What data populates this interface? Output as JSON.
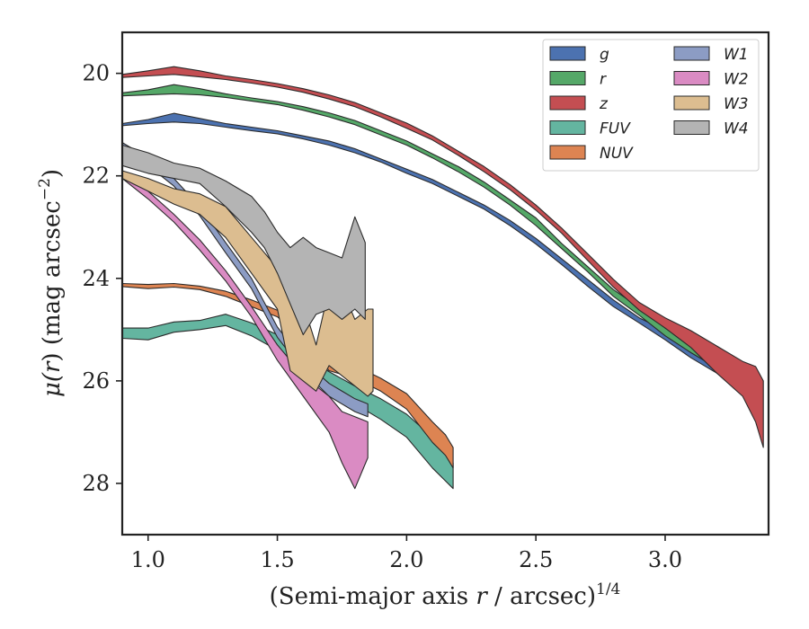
{
  "chart_data": {
    "type": "area",
    "title": "",
    "xlabel": "(Semi-major axis r / arcsec)1/4",
    "xlabel_parts": {
      "main": "(Semi-major axis ",
      "var": "r",
      "rest": " / arcsec)",
      "sup": "1/4"
    },
    "ylabel": "μ(r) (mag arcsec−2)",
    "ylabel_parts": {
      "mu": "μ(",
      "var": "r",
      "rest": ") (mag arcsec",
      "sup": "−2",
      "close": ")"
    },
    "xlim": [
      0.9,
      3.4
    ],
    "ylim": [
      29.0,
      19.2
    ],
    "y_inverted": true,
    "grid": false,
    "legend_placement": "top-right",
    "xticks": [
      1.0,
      1.5,
      2.0,
      2.5,
      3.0
    ],
    "xtick_labels": [
      "1.0",
      "1.5",
      "2.0",
      "2.5",
      "3.0"
    ],
    "yticks": [
      20,
      22,
      24,
      26,
      28
    ],
    "ytick_labels": [
      "20",
      "22",
      "24",
      "26",
      "28"
    ],
    "series": [
      {
        "name": "g",
        "color": "#4c72b0",
        "x": [
          0.9,
          1.0,
          1.1,
          1.2,
          1.3,
          1.4,
          1.5,
          1.6,
          1.7,
          1.8,
          1.9,
          2.0,
          2.1,
          2.2,
          2.3,
          2.4,
          2.5,
          2.6,
          2.7,
          2.8,
          2.9,
          3.0,
          3.1,
          3.2,
          3.3,
          3.35
        ],
        "y_bright": [
          20.98,
          20.9,
          20.78,
          20.88,
          20.98,
          21.05,
          21.12,
          21.22,
          21.32,
          21.47,
          21.67,
          21.87,
          22.07,
          22.32,
          22.57,
          22.87,
          23.22,
          23.62,
          24.02,
          24.42,
          24.77,
          25.02,
          25.32,
          25.62,
          25.92,
          26.12
        ],
        "y_faint": [
          21.02,
          20.98,
          20.95,
          20.98,
          21.05,
          21.12,
          21.18,
          21.28,
          21.4,
          21.55,
          21.73,
          21.95,
          22.15,
          22.4,
          22.65,
          22.97,
          23.33,
          23.73,
          24.15,
          24.55,
          24.87,
          25.2,
          25.55,
          25.85,
          26.25,
          26.5
        ]
      },
      {
        "name": "r",
        "color": "#55a868",
        "x": [
          0.9,
          1.0,
          1.1,
          1.2,
          1.3,
          1.4,
          1.5,
          1.6,
          1.7,
          1.8,
          1.9,
          2.0,
          2.1,
          2.2,
          2.3,
          2.4,
          2.5,
          2.6,
          2.7,
          2.8,
          2.9,
          3.0,
          3.1,
          3.2,
          3.3,
          3.35
        ],
        "y_bright": [
          20.38,
          20.32,
          20.22,
          20.3,
          20.4,
          20.48,
          20.55,
          20.65,
          20.77,
          20.92,
          21.12,
          21.32,
          21.57,
          21.82,
          22.12,
          22.47,
          22.82,
          23.32,
          23.77,
          24.22,
          24.57,
          24.97,
          25.27,
          25.57,
          25.87,
          26.02
        ],
        "y_faint": [
          20.44,
          20.42,
          20.4,
          20.42,
          20.47,
          20.54,
          20.61,
          20.72,
          20.85,
          21.0,
          21.2,
          21.4,
          21.65,
          21.92,
          22.22,
          22.57,
          22.97,
          23.42,
          23.87,
          24.35,
          24.72,
          25.12,
          25.45,
          25.75,
          26.1,
          26.3
        ]
      },
      {
        "name": "z",
        "color": "#c44e52",
        "x": [
          0.9,
          1.0,
          1.1,
          1.2,
          1.3,
          1.4,
          1.5,
          1.6,
          1.7,
          1.8,
          1.9,
          2.0,
          2.1,
          2.2,
          2.3,
          2.4,
          2.5,
          2.6,
          2.7,
          2.8,
          2.9,
          3.0,
          3.1,
          3.2,
          3.3,
          3.35,
          3.38
        ],
        "y_bright": [
          20.02,
          19.95,
          19.87,
          19.95,
          20.05,
          20.12,
          20.2,
          20.3,
          20.42,
          20.57,
          20.77,
          20.97,
          21.22,
          21.52,
          21.82,
          22.17,
          22.57,
          23.02,
          23.52,
          24.02,
          24.47,
          24.77,
          25.02,
          25.32,
          25.62,
          25.72,
          26.0
        ],
        "y_faint": [
          20.08,
          20.05,
          20.02,
          20.07,
          20.12,
          20.19,
          20.27,
          20.37,
          20.5,
          20.65,
          20.85,
          21.07,
          21.3,
          21.6,
          21.92,
          22.27,
          22.67,
          23.12,
          23.65,
          24.17,
          24.62,
          24.97,
          25.35,
          25.85,
          26.3,
          26.8,
          27.3
        ]
      },
      {
        "name": "FUV",
        "color": "#64b5a0",
        "x": [
          0.9,
          1.0,
          1.1,
          1.2,
          1.3,
          1.4,
          1.5,
          1.6,
          1.7,
          1.8,
          1.9,
          2.0,
          2.1,
          2.15,
          2.18
        ],
        "y_bright": [
          24.97,
          24.97,
          24.85,
          24.82,
          24.7,
          24.87,
          25.1,
          25.5,
          25.82,
          26.1,
          26.35,
          26.65,
          27.1,
          27.35,
          27.6
        ],
        "y_faint": [
          25.17,
          25.2,
          25.05,
          25.0,
          24.92,
          25.12,
          25.4,
          25.8,
          26.15,
          26.45,
          26.75,
          27.1,
          27.7,
          27.95,
          28.1
        ]
      },
      {
        "name": "NUV",
        "color": "#dd8452",
        "x": [
          0.9,
          1.0,
          1.1,
          1.2,
          1.3,
          1.4,
          1.5,
          1.6,
          1.7,
          1.8,
          1.9,
          2.0,
          2.1,
          2.15,
          2.18
        ],
        "y_bright": [
          24.1,
          24.12,
          24.1,
          24.15,
          24.25,
          24.42,
          24.62,
          25.0,
          25.6,
          25.7,
          25.95,
          26.25,
          26.8,
          27.05,
          27.3
        ],
        "y_faint": [
          24.16,
          24.2,
          24.17,
          24.22,
          24.35,
          24.55,
          24.75,
          25.2,
          25.8,
          25.95,
          26.2,
          26.55,
          27.2,
          27.45,
          27.7
        ]
      },
      {
        "name": "W1",
        "color": "#8c9cc4",
        "x": [
          0.9,
          1.0,
          1.1,
          1.2,
          1.3,
          1.4,
          1.5,
          1.6,
          1.7,
          1.8,
          1.85
        ],
        "y_bright": [
          21.35,
          21.65,
          22.05,
          22.6,
          23.3,
          24.0,
          24.95,
          25.6,
          26.05,
          26.35,
          26.45
        ],
        "y_faint": [
          21.45,
          21.8,
          22.2,
          22.78,
          23.5,
          24.2,
          25.15,
          25.8,
          26.3,
          26.6,
          26.7
        ]
      },
      {
        "name": "W2",
        "color": "#da8bc3",
        "x": [
          0.9,
          1.0,
          1.1,
          1.2,
          1.3,
          1.4,
          1.5,
          1.6,
          1.7,
          1.75,
          1.8,
          1.85
        ],
        "y_bright": [
          21.95,
          22.3,
          22.75,
          23.25,
          23.85,
          24.55,
          25.3,
          25.9,
          26.3,
          26.6,
          26.7,
          26.8
        ],
        "y_faint": [
          22.05,
          22.45,
          22.9,
          23.45,
          24.05,
          24.75,
          25.6,
          26.3,
          27.0,
          27.6,
          28.1,
          27.5
        ]
      },
      {
        "name": "W3",
        "color": "#dcbd90",
        "x": [
          0.9,
          1.0,
          1.1,
          1.2,
          1.3,
          1.4,
          1.5,
          1.55,
          1.6,
          1.65,
          1.7,
          1.75,
          1.8,
          1.85,
          1.87
        ],
        "y_bright": [
          21.9,
          22.05,
          22.25,
          22.35,
          22.6,
          23.2,
          23.8,
          24.3,
          24.5,
          25.3,
          24.2,
          24.2,
          24.8,
          24.6,
          24.6
        ],
        "y_faint": [
          22.05,
          22.3,
          22.55,
          22.75,
          23.2,
          23.9,
          24.6,
          25.8,
          26.0,
          26.2,
          25.7,
          25.9,
          26.1,
          26.3,
          26.2
        ]
      },
      {
        "name": "W4",
        "color": "#b4b4b4",
        "x": [
          0.9,
          1.0,
          1.1,
          1.2,
          1.3,
          1.4,
          1.45,
          1.5,
          1.55,
          1.6,
          1.65,
          1.7,
          1.75,
          1.8,
          1.84
        ],
        "y_bright": [
          21.4,
          21.55,
          21.75,
          21.85,
          22.1,
          22.4,
          22.7,
          23.1,
          23.4,
          23.2,
          23.4,
          23.5,
          23.6,
          22.8,
          23.3
        ],
        "y_faint": [
          21.8,
          21.95,
          22.05,
          22.15,
          22.6,
          23.1,
          23.4,
          23.9,
          24.5,
          25.1,
          24.7,
          24.6,
          24.8,
          24.6,
          24.8
        ]
      }
    ]
  }
}
